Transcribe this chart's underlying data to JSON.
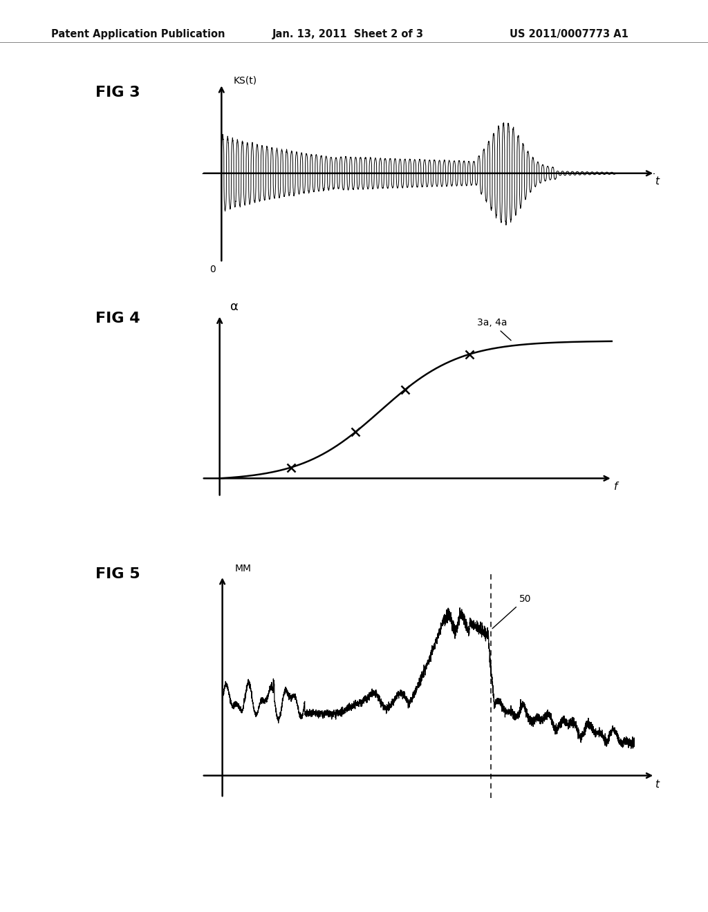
{
  "header_left": "Patent Application Publication",
  "header_center": "Jan. 13, 2011  Sheet 2 of 3",
  "header_right": "US 2011/0007773 A1",
  "fig3_label": "FIG 3",
  "fig3_ylabel": "KS(t)",
  "fig3_xlabel": "t",
  "fig3_origin": "0",
  "fig4_label": "FIG 4",
  "fig4_ylabel": "α",
  "fig4_xlabel": "f",
  "fig4_annotation": "3a, 4a",
  "fig5_label": "FIG 5",
  "fig5_ylabel": "MM",
  "fig5_xlabel": "t",
  "fig5_annotation": "50",
  "bg_color": "#ffffff",
  "line_color": "#000000",
  "header_fontsize": 10.5,
  "fig_label_fontsize": 16,
  "axis_label_fontsize": 11,
  "tick_label_fontsize": 10
}
